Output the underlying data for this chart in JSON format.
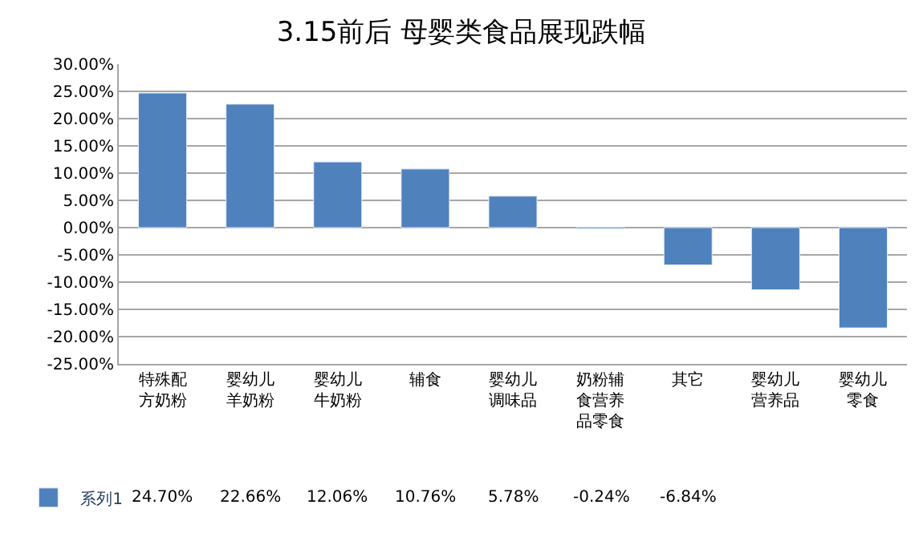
{
  "chart_data": {
    "type": "bar",
    "title": "3.15前后 母婴类食品展现跌幅",
    "categories": [
      "特殊配方奶粉",
      "婴幼儿羊奶粉",
      "婴幼儿牛奶粉",
      "辅食",
      "婴幼儿调味品",
      "奶粉辅食营养品零食",
      "其它",
      "婴幼儿营养品",
      "婴幼儿零食"
    ],
    "series": [
      {
        "name": "系列1",
        "color": "#4f81bd",
        "values": [
          24.7,
          22.66,
          12.06,
          10.76,
          5.78,
          -0.24,
          -6.84,
          -11.4,
          -18.4
        ],
        "value_labels": [
          "24.70%",
          "22.66%",
          "12.06%",
          "10.76%",
          "5.78%",
          "-0.24%",
          "-6.84%",
          null,
          null
        ]
      }
    ],
    "ylim": [
      -25,
      30
    ],
    "yticks": [
      {
        "value": 30,
        "label": "30.00%"
      },
      {
        "value": 25,
        "label": "25.00%"
      },
      {
        "value": 20,
        "label": "20.00%"
      },
      {
        "value": 15,
        "label": "15.00%"
      },
      {
        "value": 10,
        "label": "10.00%"
      },
      {
        "value": 5,
        "label": "5.00%"
      },
      {
        "value": 0,
        "label": "0.00%"
      },
      {
        "value": -5,
        "label": "-5.00%"
      },
      {
        "value": -10,
        "label": "-10.00%"
      },
      {
        "value": -15,
        "label": "-15.00%"
      },
      {
        "value": -20,
        "label": "-20.00%"
      },
      {
        "value": -25,
        "label": "-25.00%"
      }
    ],
    "grid": "y",
    "legend": "bottom left"
  }
}
